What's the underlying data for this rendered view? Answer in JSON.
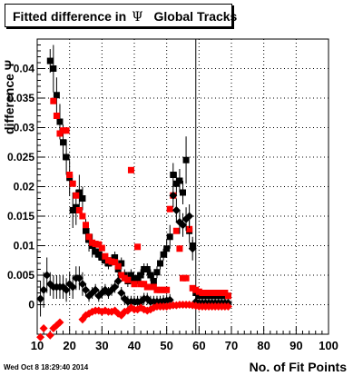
{
  "title": {
    "text": "Fitted difference in",
    "symbol": "Ψ",
    "suffix": "Global Tracks"
  },
  "timestamp": "Wed Oct  8 18:29:40 2014",
  "colors": {
    "black": "#000000",
    "red": "#ff0000",
    "vline": "#000000"
  },
  "chart_data": {
    "type": "scatter",
    "title": "Fitted difference in Ψ Global Tracks",
    "xlabel": "No. of Fit Points",
    "ylabel": "difference Ψ",
    "xlim": [
      10,
      100
    ],
    "ylim": [
      -0.005,
      0.045
    ],
    "xticks": [
      10,
      20,
      30,
      40,
      50,
      60,
      70,
      80,
      90,
      100
    ],
    "yticks": [
      0,
      0.005,
      0.01,
      0.015,
      0.02,
      0.025,
      0.03,
      0.035,
      0.04
    ],
    "ytick_labels": [
      "0",
      "0.005",
      "0.01",
      "0.015",
      "0.02",
      "0.025",
      "0.03",
      "0.035",
      "0.04"
    ],
    "grid": true,
    "vertical_line_x": 59,
    "series": [
      {
        "marker": "square",
        "color": "#000000",
        "x": [
          14,
          15,
          16,
          17,
          18,
          19,
          20,
          21,
          22,
          23,
          24,
          25,
          26,
          27,
          28,
          29,
          30,
          31,
          32,
          33,
          34,
          35,
          36,
          37,
          38,
          39,
          40,
          41,
          42,
          43,
          44,
          45,
          46,
          47,
          48,
          49,
          50,
          51,
          52,
          53,
          54,
          55,
          56,
          57,
          58,
          59,
          60,
          61,
          62,
          63,
          64,
          65,
          66,
          67,
          68,
          69
        ],
        "y": [
          0.0413,
          0.04,
          0.0355,
          0.031,
          0.0275,
          0.025,
          0.0215,
          0.016,
          0.0165,
          0.019,
          0.018,
          0.0125,
          0.011,
          0.01,
          0.009,
          0.0085,
          0.008,
          0.0075,
          0.007,
          0.0075,
          0.008,
          0.006,
          0.007,
          0.005,
          0.004,
          0.005,
          0.004,
          0.0045,
          0.005,
          0.006,
          0.006,
          0.005,
          0.004,
          0.0055,
          0.007,
          0.0085,
          0.0095,
          0.0115,
          0.022,
          0.0205,
          0.021,
          0.019,
          0.0245,
          0.0125,
          0.01,
          0.002,
          0.0015,
          0.0015,
          0.0015,
          0.0015,
          0.0015,
          0.0015,
          0.0015,
          0.0015,
          0.0015,
          0.0015
        ],
        "err": [
          0.002,
          0.004,
          0.003,
          0.003,
          0.003,
          0.003,
          0.003,
          0.003,
          0.003,
          0.003,
          0.002,
          0.002,
          0.002,
          0.002,
          0.001,
          0.001,
          0.001,
          0.001,
          0.001,
          0.001,
          0.001,
          0.001,
          0.001,
          0.001,
          0.001,
          0.001,
          0.001,
          0.001,
          0.001,
          0.001,
          0.001,
          0.001,
          0.001,
          0.001,
          0.001,
          0.001,
          0.0015,
          0.002,
          0.002,
          0.002,
          0.002,
          0.002,
          0.004,
          0.002,
          0.001,
          0.001,
          0.0005,
          0.0005,
          0.0005,
          0.0005,
          0.0005,
          0.0005,
          0.0005,
          0.0005,
          0.0005,
          0.0005
        ]
      },
      {
        "marker": "square",
        "color": "#ff0000",
        "x": [
          15,
          16,
          17,
          18,
          19,
          20,
          21,
          22,
          23,
          24,
          25,
          26,
          27,
          28,
          29,
          30,
          31,
          32,
          33,
          34,
          35,
          36,
          37,
          38,
          39,
          40,
          41,
          42,
          43,
          44,
          45,
          46,
          47,
          48,
          49,
          50,
          51,
          52,
          53,
          54,
          55,
          56,
          57,
          58,
          59,
          60,
          61,
          62,
          63,
          64,
          65,
          66,
          67,
          68,
          69
        ],
        "y": [
          0.0345,
          0.032,
          0.029,
          0.0295,
          0.0295,
          0.022,
          0.0205,
          0.0185,
          0.016,
          0.015,
          0.0135,
          0.0115,
          0.0105,
          0.0103,
          0.0102,
          0.0096,
          0.0082,
          0.0075,
          0.0073,
          0.0072,
          0.0065,
          0.005,
          0.0045,
          0.0042,
          0.0228,
          0.0035,
          0.0098,
          0.0035,
          0.0035,
          0.003,
          0.003,
          0.003,
          0.0025,
          0.0025,
          0.0025,
          0.0025,
          0.0162,
          0.0185,
          0.0125,
          0.0095,
          0.0045,
          0.0045,
          0.0128,
          0.0028,
          0.0025,
          0.0022,
          0.002,
          0.002,
          0.002,
          0.002,
          0.002,
          0.002,
          0.002,
          0.002,
          0.0015
        ],
        "err": []
      },
      {
        "marker": "diamond",
        "color": "#000000",
        "x": [
          11,
          12,
          13,
          14,
          15,
          16,
          17,
          18,
          19,
          20,
          21,
          22,
          23,
          24,
          25,
          26,
          27,
          28,
          29,
          30,
          31,
          32,
          33,
          34,
          35,
          36,
          37,
          38,
          39,
          40,
          41,
          42,
          43,
          44,
          45,
          46,
          47,
          48,
          49,
          50,
          51,
          52,
          53,
          54,
          55,
          56,
          57,
          58,
          59,
          60,
          61,
          62,
          63,
          64,
          65,
          66,
          67,
          68,
          69
        ],
        "y": [
          0.001,
          0.0025,
          0.005,
          0.0035,
          0.003,
          0.003,
          0.003,
          0.003,
          0.0025,
          0.0035,
          0.003,
          0.0045,
          0.0045,
          0.0035,
          0.0025,
          0.0015,
          0.002,
          0.0025,
          0.0015,
          0.002,
          0.0025,
          0.002,
          0.0025,
          0.003,
          0.004,
          0.002,
          0.001,
          0.0005,
          0.0005,
          0.0005,
          0.0005,
          0.0005,
          0.001,
          0.001,
          0.0005,
          0.0005,
          0.0005,
          0.0005,
          0.0006,
          0.0007,
          0.0008,
          0.0185,
          0.016,
          0.014,
          0.0135,
          0.0145,
          0.015,
          0.0095,
          0.0005,
          0.0003,
          0.0003,
          0.0003,
          0.0003,
          0.0003,
          0.0003,
          0.0003,
          0.0003,
          0.0003,
          0.0003
        ],
        "err": [
          0.003,
          0.003,
          0.003,
          0.002,
          0.002,
          0.002,
          0.002,
          0.002,
          0.002,
          0.002,
          0.002,
          0.002,
          0.002,
          0.002,
          0.001,
          0.001,
          0.001,
          0.001,
          0.001,
          0.001,
          0.001,
          0.001,
          0.001,
          0.001,
          0.001,
          0.001,
          0.001,
          0.001,
          0.001,
          0.001,
          0.001,
          0.001,
          0.001,
          0.001,
          0.001,
          0.001,
          0.001,
          0.001,
          0.001,
          0.001,
          0.001,
          0.002,
          0.002,
          0.002,
          0.002,
          0.002,
          0.002,
          0.002,
          0.0005,
          0.0005,
          0.0005,
          0.0005,
          0.0005,
          0.0005,
          0.0005,
          0.0005,
          0.0005,
          0.0005,
          0.0005
        ]
      },
      {
        "marker": "diamond",
        "color": "#ff0000",
        "x": [
          11,
          12,
          14,
          15,
          16,
          17,
          24,
          25,
          26,
          27,
          28,
          29,
          30,
          31,
          32,
          33,
          34,
          35,
          36,
          37,
          38,
          39,
          40,
          41,
          42,
          43,
          44,
          45,
          46,
          47,
          48,
          49,
          50,
          51,
          52,
          53,
          54,
          55,
          56,
          57,
          58,
          59,
          60,
          61,
          62,
          63,
          64,
          65,
          66,
          67,
          68,
          69
        ],
        "y": [
          -0.0055,
          -0.004,
          -0.0052,
          -0.004,
          -0.0035,
          -0.003,
          -0.0025,
          -0.0018,
          -0.0015,
          -0.0012,
          -0.001,
          -0.001,
          -0.0012,
          -0.001,
          -0.0012,
          -0.0012,
          -0.001,
          -0.0015,
          -0.0018,
          -0.0012,
          -0.001,
          -0.0005,
          -0.0008,
          -0.0008,
          -0.0005,
          -0.0008,
          -0.001,
          -0.0008,
          -0.0005,
          -0.0003,
          -0.0003,
          -0.0003,
          -0.0003,
          -0.0002,
          -0.0001,
          -0.0001,
          0.0,
          0.0,
          0.0,
          0.0,
          -0.0001,
          -0.0002,
          -0.0003,
          -0.0003,
          -0.0003,
          -0.0003,
          -0.0003,
          -0.0003,
          -0.0003,
          -0.0003,
          -0.0003,
          -0.0003
        ],
        "err": []
      }
    ]
  }
}
